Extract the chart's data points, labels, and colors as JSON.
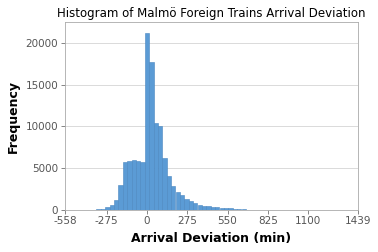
{
  "title": "Histogram of Malmö Foreign Trains Arrival Deviation",
  "xlabel": "Arrival Deviation (min)",
  "ylabel": "Frequency",
  "bar_color": "#5b9bd5",
  "bar_edgecolor": "#4a86c0",
  "xlim": [
    -558,
    1439
  ],
  "ylim": [
    0,
    22500
  ],
  "xticks": [
    -558,
    -275,
    0,
    275,
    550,
    825,
    1100,
    1439
  ],
  "yticks": [
    0,
    5000,
    10000,
    15000,
    20000
  ],
  "bin_width": 30,
  "bin_centers": [
    -330,
    -300,
    -270,
    -240,
    -210,
    -180,
    -150,
    -120,
    -90,
    -60,
    -30,
    0,
    30,
    60,
    90,
    120,
    150,
    180,
    210,
    240,
    270,
    300,
    330,
    360,
    390,
    420,
    450,
    480,
    510,
    540,
    570,
    600,
    630,
    660
  ],
  "frequencies": [
    50,
    100,
    250,
    600,
    1200,
    2900,
    5700,
    5800,
    6000,
    5900,
    5700,
    21200,
    17700,
    10400,
    10100,
    6200,
    4000,
    2800,
    2100,
    1700,
    1300,
    1000,
    750,
    550,
    450,
    380,
    300,
    250,
    200,
    160,
    130,
    100,
    80,
    60
  ],
  "title_fontsize": 8.5,
  "label_fontsize": 9,
  "tick_fontsize": 7.5,
  "background_color": "#ffffff",
  "figure_background": "#ffffff"
}
